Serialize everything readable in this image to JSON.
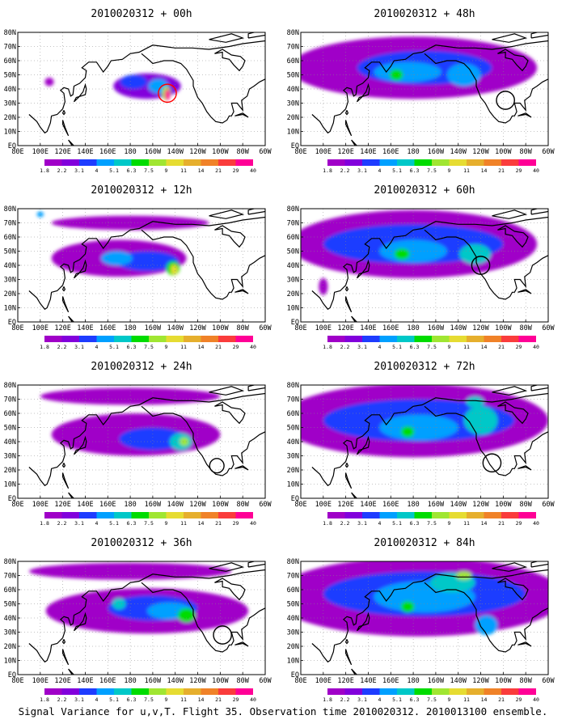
{
  "caption": "Signal Variance for u,v,T. Flight 35. Observation time 2010020312. 2010013100 ensemble.",
  "colors": [
    "#a000c8",
    "#8200dc",
    "#1e3cff",
    "#00a0ff",
    "#00c8c8",
    "#00dc00",
    "#a0e632",
    "#e6dc32",
    "#e6af2d",
    "#f08228",
    "#fa3c3c",
    "#ff0096"
  ],
  "chart_data": [
    {
      "type": "heatmap",
      "title": "2010020312 + 00h",
      "lead_hours": 0,
      "x_tick_labels": [
        "80E",
        "100E",
        "120E",
        "140E",
        "160E",
        "180",
        "160W",
        "140W",
        "120W",
        "100W",
        "80W",
        "60W"
      ],
      "y_tick_labels": [
        "EQ",
        "10N",
        "20N",
        "30N",
        "40N",
        "50N",
        "60N",
        "70N",
        "80N"
      ],
      "legend_levels": [
        "1.8",
        "2.2",
        "3.1",
        "4",
        "5.1",
        "6.3",
        "7.5",
        "9",
        "11",
        "14",
        "21",
        "29",
        "40"
      ],
      "blobs": [
        {
          "lon": 195,
          "lat": 42,
          "level": 1,
          "sx": 30,
          "sy": 9
        },
        {
          "lon": 183,
          "lat": 45,
          "level": 2,
          "sx": 12,
          "sy": 5
        },
        {
          "lon": 205,
          "lat": 42,
          "level": 3,
          "sx": 9,
          "sy": 5
        },
        {
          "lon": 212,
          "lat": 37,
          "level": 6,
          "sx": 4,
          "sy": 5
        },
        {
          "lon": 213,
          "lat": 36,
          "level": 11,
          "sx": 2.5,
          "sy": 4
        },
        {
          "lon": 108,
          "lat": 45,
          "level": 0,
          "sx": 4,
          "sy": 3
        }
      ],
      "circle": {
        "lon": 213,
        "lat": 37,
        "r": 5,
        "color": "#ff0000"
      }
    },
    {
      "type": "heatmap",
      "title": "2010020312 + 12h",
      "lead_hours": 12,
      "x_tick_labels": [
        "80E",
        "100E",
        "120E",
        "140E",
        "160E",
        "180",
        "160W",
        "140W",
        "120W",
        "100W",
        "80W",
        "60W"
      ],
      "y_tick_labels": [
        "EQ",
        "10N",
        "20N",
        "30N",
        "40N",
        "50N",
        "60N",
        "70N",
        "80N"
      ],
      "legend_levels": [
        "1.8",
        "2.2",
        "3.1",
        "4",
        "5.1",
        "6.3",
        "7.5",
        "9",
        "11",
        "14",
        "21",
        "29",
        "40"
      ],
      "blobs": [
        {
          "lon": 170,
          "lat": 45,
          "level": 0,
          "sx": 60,
          "sy": 13
        },
        {
          "lon": 180,
          "lat": 70,
          "level": 0,
          "sx": 70,
          "sy": 5
        },
        {
          "lon": 195,
          "lat": 43,
          "level": 2,
          "sx": 28,
          "sy": 7
        },
        {
          "lon": 168,
          "lat": 45,
          "level": 3,
          "sx": 14,
          "sy": 5
        },
        {
          "lon": 218,
          "lat": 38,
          "level": 5,
          "sx": 6,
          "sy": 5
        },
        {
          "lon": 219,
          "lat": 37,
          "level": 7,
          "sx": 3,
          "sy": 3.5
        },
        {
          "lon": 100,
          "lat": 76,
          "level": 3,
          "sx": 3,
          "sy": 2
        }
      ]
    },
    {
      "type": "heatmap",
      "title": "2010020312 + 24h",
      "lead_hours": 24,
      "x_tick_labels": [
        "80E",
        "100E",
        "120E",
        "140E",
        "160E",
        "180",
        "160W",
        "140W",
        "120W",
        "100W",
        "80W",
        "60W"
      ],
      "y_tick_labels": [
        "EQ",
        "10N",
        "20N",
        "30N",
        "40N",
        "50N",
        "60N",
        "70N",
        "80N"
      ],
      "legend_levels": [
        "1.8",
        "2.2",
        "3.1",
        "4",
        "5.1",
        "6.3",
        "7.5",
        "9",
        "11",
        "14",
        "21",
        "29",
        "40"
      ],
      "blobs": [
        {
          "lon": 185,
          "lat": 45,
          "level": 0,
          "sx": 75,
          "sy": 15
        },
        {
          "lon": 180,
          "lat": 72,
          "level": 0,
          "sx": 80,
          "sy": 6
        },
        {
          "lon": 200,
          "lat": 42,
          "level": 2,
          "sx": 30,
          "sy": 8
        },
        {
          "lon": 225,
          "lat": 40,
          "level": 4,
          "sx": 10,
          "sy": 6
        },
        {
          "lon": 228,
          "lat": 40,
          "level": 6,
          "sx": 4,
          "sy": 3
        }
      ],
      "circle": {
        "lon": 257,
        "lat": 23,
        "r": 4,
        "color": "#000000"
      }
    },
    {
      "type": "heatmap",
      "title": "2010020312 + 36h",
      "lead_hours": 36,
      "x_tick_labels": [
        "80E",
        "100E",
        "120E",
        "140E",
        "160E",
        "180",
        "160W",
        "140W",
        "120W",
        "100W",
        "80W",
        "60W"
      ],
      "y_tick_labels": [
        "EQ",
        "10N",
        "20N",
        "30N",
        "40N",
        "50N",
        "60N",
        "70N",
        "80N"
      ],
      "legend_levels": [
        "1.8",
        "2.2",
        "3.1",
        "4",
        "5.1",
        "6.3",
        "7.5",
        "9",
        "11",
        "14",
        "21",
        "29",
        "40"
      ],
      "blobs": [
        {
          "lon": 195,
          "lat": 45,
          "level": 0,
          "sx": 90,
          "sy": 16
        },
        {
          "lon": 180,
          "lat": 73,
          "level": 0,
          "sx": 90,
          "sy": 6
        },
        {
          "lon": 200,
          "lat": 47,
          "level": 2,
          "sx": 40,
          "sy": 9
        },
        {
          "lon": 215,
          "lat": 45,
          "level": 3,
          "sx": 20,
          "sy": 6
        },
        {
          "lon": 230,
          "lat": 42,
          "level": 5,
          "sx": 8,
          "sy": 5
        },
        {
          "lon": 170,
          "lat": 50,
          "level": 4,
          "sx": 6,
          "sy": 4
        }
      ],
      "circle": {
        "lon": 262,
        "lat": 28,
        "r": 5,
        "color": "#000000"
      }
    },
    {
      "type": "heatmap",
      "title": "2010020312 + 48h",
      "lead_hours": 48,
      "x_tick_labels": [
        "80E",
        "100E",
        "120E",
        "140E",
        "160E",
        "180",
        "160W",
        "140W",
        "120W",
        "100W",
        "80W",
        "60W"
      ],
      "y_tick_labels": [
        "EQ",
        "10N",
        "20N",
        "30N",
        "40N",
        "50N",
        "60N",
        "70N",
        "80N"
      ],
      "legend_levels": [
        "1.8",
        "2.2",
        "3.1",
        "4",
        "5.1",
        "6.3",
        "7.5",
        "9",
        "11",
        "14",
        "21",
        "29",
        "40"
      ],
      "blobs": [
        {
          "lon": 180,
          "lat": 55,
          "level": 0,
          "sx": 110,
          "sy": 22
        },
        {
          "lon": 190,
          "lat": 55,
          "level": 2,
          "sx": 60,
          "sy": 12
        },
        {
          "lon": 175,
          "lat": 52,
          "level": 3,
          "sx": 30,
          "sy": 7
        },
        {
          "lon": 225,
          "lat": 50,
          "level": 3,
          "sx": 15,
          "sy": 8
        },
        {
          "lon": 165,
          "lat": 50,
          "level": 5,
          "sx": 6,
          "sy": 4
        }
      ],
      "circle": {
        "lon": 262,
        "lat": 32,
        "r": 5,
        "color": "#000000"
      }
    },
    {
      "type": "heatmap",
      "title": "2010020312 + 60h",
      "lead_hours": 60,
      "x_tick_labels": [
        "80E",
        "100E",
        "120E",
        "140E",
        "160E",
        "180",
        "160W",
        "140W",
        "120W",
        "100W",
        "80W",
        "60W"
      ],
      "y_tick_labels": [
        "EQ",
        "10N",
        "20N",
        "30N",
        "40N",
        "50N",
        "60N",
        "70N",
        "80N"
      ],
      "legend_levels": [
        "1.8",
        "2.2",
        "3.1",
        "4",
        "5.1",
        "6.3",
        "7.5",
        "9",
        "11",
        "14",
        "21",
        "29",
        "40"
      ],
      "blobs": [
        {
          "lon": 180,
          "lat": 55,
          "level": 0,
          "sx": 110,
          "sy": 24
        },
        {
          "lon": 180,
          "lat": 55,
          "level": 2,
          "sx": 80,
          "sy": 14
        },
        {
          "lon": 180,
          "lat": 50,
          "level": 3,
          "sx": 30,
          "sy": 8
        },
        {
          "lon": 235,
          "lat": 48,
          "level": 4,
          "sx": 14,
          "sy": 7
        },
        {
          "lon": 170,
          "lat": 48,
          "level": 5,
          "sx": 7,
          "sy": 4
        },
        {
          "lon": 100,
          "lat": 25,
          "level": 0,
          "sx": 4,
          "sy": 6
        }
      ],
      "circle": {
        "lon": 240,
        "lat": 40,
        "r": 5,
        "color": "#000000"
      }
    },
    {
      "type": "heatmap",
      "title": "2010020312 + 72h",
      "lead_hours": 72,
      "x_tick_labels": [
        "80E",
        "100E",
        "120E",
        "140E",
        "160E",
        "180",
        "160W",
        "140W",
        "120W",
        "100W",
        "80W",
        "60W"
      ],
      "y_tick_labels": [
        "EQ",
        "10N",
        "20N",
        "30N",
        "40N",
        "50N",
        "60N",
        "70N",
        "80N"
      ],
      "legend_levels": [
        "1.8",
        "2.2",
        "3.1",
        "4",
        "5.1",
        "6.3",
        "7.5",
        "9",
        "11",
        "14",
        "21",
        "29",
        "40"
      ],
      "blobs": [
        {
          "lon": 180,
          "lat": 55,
          "level": 0,
          "sx": 120,
          "sy": 26
        },
        {
          "lon": 185,
          "lat": 55,
          "level": 2,
          "sx": 85,
          "sy": 15
        },
        {
          "lon": 185,
          "lat": 50,
          "level": 3,
          "sx": 35,
          "sy": 9
        },
        {
          "lon": 240,
          "lat": 55,
          "level": 4,
          "sx": 15,
          "sy": 10
        },
        {
          "lon": 175,
          "lat": 47,
          "level": 5,
          "sx": 6,
          "sy": 4
        },
        {
          "lon": 235,
          "lat": 68,
          "level": 4,
          "sx": 8,
          "sy": 4
        }
      ],
      "circle": {
        "lon": 250,
        "lat": 25,
        "r": 5,
        "color": "#000000"
      }
    },
    {
      "type": "heatmap",
      "title": "2010020312 + 84h",
      "lead_hours": 84,
      "x_tick_labels": [
        "80E",
        "100E",
        "120E",
        "140E",
        "160E",
        "180",
        "160W",
        "140W",
        "120W",
        "100W",
        "80W",
        "60W"
      ],
      "y_tick_labels": [
        "EQ",
        "10N",
        "20N",
        "30N",
        "40N",
        "50N",
        "60N",
        "70N",
        "80N"
      ],
      "legend_levels": [
        "1.8",
        "2.2",
        "3.1",
        "4",
        "5.1",
        "6.3",
        "7.5",
        "9",
        "11",
        "14",
        "21",
        "29",
        "40"
      ],
      "blobs": [
        {
          "lon": 185,
          "lat": 55,
          "level": 0,
          "sx": 130,
          "sy": 28
        },
        {
          "lon": 190,
          "lat": 57,
          "level": 2,
          "sx": 90,
          "sy": 16
        },
        {
          "lon": 190,
          "lat": 55,
          "level": 3,
          "sx": 45,
          "sy": 11
        },
        {
          "lon": 215,
          "lat": 65,
          "level": 4,
          "sx": 20,
          "sy": 7
        },
        {
          "lon": 225,
          "lat": 70,
          "level": 6,
          "sx": 7,
          "sy": 3
        },
        {
          "lon": 175,
          "lat": 48,
          "level": 5,
          "sx": 6,
          "sy": 4
        },
        {
          "lon": 245,
          "lat": 35,
          "level": 3,
          "sx": 10,
          "sy": 7
        }
      ]
    }
  ]
}
